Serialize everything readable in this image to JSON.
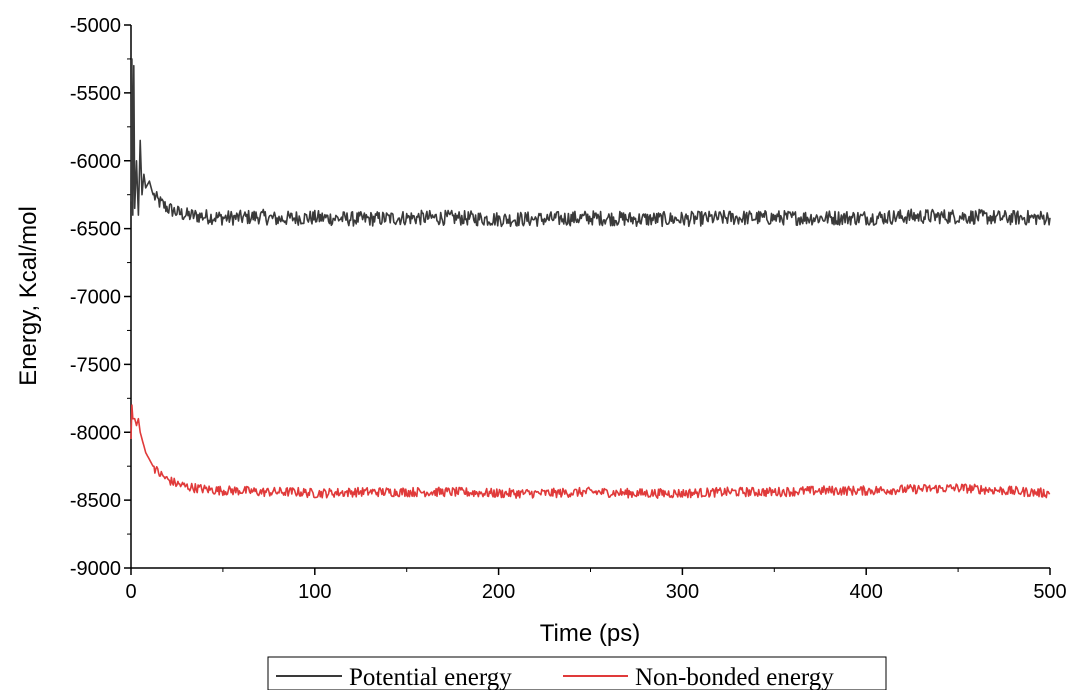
{
  "chart_data": {
    "type": "line",
    "title": "",
    "xlabel": "Time (ps)",
    "ylabel": "Energy, Kcal/mol",
    "xlim": [
      0,
      500
    ],
    "ylim": [
      -9000,
      -5000
    ],
    "xticks": [
      0,
      100,
      200,
      300,
      400,
      500
    ],
    "yticks": [
      -9000,
      -8500,
      -8000,
      -7500,
      -7000,
      -6500,
      -6000,
      -5500,
      -5000
    ],
    "xtick_labels": [
      "0",
      "100",
      "200",
      "300",
      "400",
      "500"
    ],
    "ytick_labels": [
      "-9000",
      "-8500",
      "-8000",
      "-7500",
      "-7000",
      "-6500",
      "-6000",
      "-5500",
      "-5000"
    ],
    "grid": false,
    "legend_position": "bottom",
    "series": [
      {
        "name": "Potential energy",
        "color": "#3a3a3a",
        "x": [
          0,
          0.5,
          1,
          1.5,
          2,
          3,
          4,
          5,
          6,
          7,
          8,
          10,
          12,
          15,
          20,
          25,
          30,
          40,
          50,
          60,
          70,
          80,
          90,
          100,
          125,
          150,
          175,
          200,
          225,
          250,
          275,
          300,
          325,
          350,
          375,
          400,
          425,
          450,
          475,
          500
        ],
        "values": [
          -6300,
          -5250,
          -6400,
          -5300,
          -6350,
          -6000,
          -6400,
          -5850,
          -6250,
          -6100,
          -6200,
          -6150,
          -6250,
          -6300,
          -6350,
          -6380,
          -6400,
          -6410,
          -6420,
          -6420,
          -6410,
          -6430,
          -6420,
          -6420,
          -6430,
          -6420,
          -6420,
          -6430,
          -6430,
          -6420,
          -6430,
          -6430,
          -6420,
          -6420,
          -6420,
          -6420,
          -6410,
          -6410,
          -6420,
          -6420
        ]
      },
      {
        "name": "Non-bonded energy",
        "color": "#e03a3a",
        "x": [
          0,
          0.5,
          1,
          2,
          3,
          4,
          5,
          6,
          8,
          10,
          12,
          15,
          20,
          25,
          30,
          40,
          50,
          60,
          70,
          80,
          90,
          100,
          125,
          150,
          175,
          200,
          225,
          250,
          275,
          300,
          325,
          350,
          375,
          400,
          425,
          450,
          475,
          500
        ],
        "values": [
          -8050,
          -7800,
          -7900,
          -7900,
          -7950,
          -7900,
          -8000,
          -8050,
          -8150,
          -8200,
          -8250,
          -8300,
          -8350,
          -8380,
          -8400,
          -8420,
          -8430,
          -8430,
          -8440,
          -8440,
          -8440,
          -8450,
          -8440,
          -8440,
          -8440,
          -8450,
          -8450,
          -8440,
          -8450,
          -8450,
          -8440,
          -8440,
          -8430,
          -8430,
          -8420,
          -8410,
          -8430,
          -8450
        ]
      }
    ]
  }
}
